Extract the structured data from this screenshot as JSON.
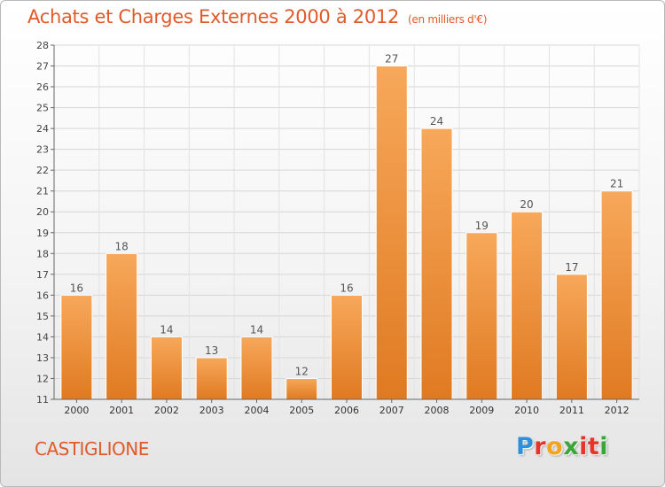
{
  "title": "Achats et Charges Externes 2000 à 2012",
  "unit": "(en milliers d'€)",
  "commune": "CASTIGLIONE",
  "logo": {
    "letters": [
      "P",
      "r",
      "o",
      "x",
      "i",
      "t",
      "i"
    ],
    "colors": [
      "#2f8fd8",
      "#e8322c",
      "#f2a51c",
      "#3aa63a",
      "#e8322c",
      "#e8322c",
      "#3aa63a"
    ]
  },
  "colors": {
    "accent": "#e05a2a",
    "bar_light": "#f7a85a",
    "bar_dark": "#e07a22"
  },
  "chart_data": {
    "type": "bar",
    "categories": [
      "2000",
      "2001",
      "2002",
      "2003",
      "2004",
      "2005",
      "2006",
      "2007",
      "2008",
      "2009",
      "2010",
      "2011",
      "2012"
    ],
    "values": [
      16,
      18,
      14,
      13,
      14,
      12,
      16,
      27,
      24,
      19,
      20,
      17,
      21
    ],
    "ylim": [
      11,
      28
    ],
    "yticks": [
      11,
      12,
      13,
      14,
      15,
      16,
      17,
      18,
      19,
      20,
      21,
      22,
      23,
      24,
      25,
      26,
      27,
      28
    ],
    "grid": true,
    "show_value_labels": true
  }
}
